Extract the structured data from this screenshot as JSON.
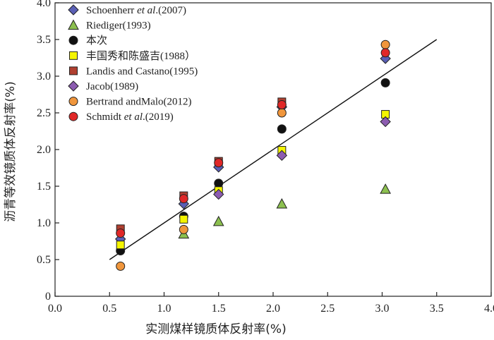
{
  "chart_data": {
    "type": "scatter",
    "xlabel": "实测煤样镜质体反射率(%)",
    "ylabel": "沥青等效镜质体反射率(%)",
    "xlim": [
      0.0,
      4.0
    ],
    "ylim": [
      0.0,
      4.0
    ],
    "xticks": [
      "0.0",
      "0.5",
      "1.0",
      "1.5",
      "2.0",
      "2.5",
      "3.0",
      "3.5",
      "4.0"
    ],
    "yticks": [
      "0",
      "0.5",
      "1.0",
      "1.5",
      "2.0",
      "2.5",
      "3.0",
      "3.5",
      "4.0"
    ],
    "grid": false,
    "legend_position": "top-left",
    "trendline": {
      "x": [
        0.5,
        3.5
      ],
      "y": [
        0.5,
        3.5
      ]
    },
    "series": [
      {
        "name_parts": [
          {
            "t": "Schoenherr ",
            "style": "normal"
          },
          {
            "t": "et al",
            "style": "italic"
          },
          {
            "t": ".(2007)",
            "style": "normal"
          }
        ],
        "marker": "diamond",
        "color": "#5a5fb5",
        "x": [
          0.6,
          1.18,
          1.5,
          2.08,
          3.03
        ],
        "y": [
          0.78,
          1.26,
          1.76,
          2.58,
          3.24
        ]
      },
      {
        "name_parts": [
          {
            "t": "Riediger(1993)",
            "style": "normal"
          }
        ],
        "marker": "triangle",
        "color": "#8cc04f",
        "x": [
          1.18,
          1.5,
          2.08,
          3.03
        ],
        "y": [
          0.85,
          1.02,
          1.26,
          1.46
        ]
      },
      {
        "name_parts": [
          {
            "t": "本次",
            "style": "normal"
          }
        ],
        "marker": "circle",
        "color": "#111111",
        "x": [
          0.6,
          1.18,
          1.5,
          2.08,
          3.03
        ],
        "y": [
          0.62,
          1.09,
          1.54,
          2.28,
          2.91
        ]
      },
      {
        "name_parts": [
          {
            "t": "丰国秀和陈盛吉(1988）",
            "style": "normal"
          }
        ],
        "marker": "square",
        "color": "#f5f500",
        "x": [
          0.6,
          1.18,
          1.5,
          2.08,
          3.03
        ],
        "y": [
          0.7,
          1.05,
          1.44,
          1.99,
          2.48
        ]
      },
      {
        "name_parts": [
          {
            "t": "Landis and Castano(1995)",
            "style": "normal"
          }
        ],
        "marker": "square",
        "color": "#b04030",
        "x": [
          0.6,
          1.18,
          1.5,
          2.08
        ],
        "y": [
          0.92,
          1.37,
          1.84,
          2.65
        ]
      },
      {
        "name_parts": [
          {
            "t": "Jacob(1989)",
            "style": "normal"
          }
        ],
        "marker": "diamond",
        "color": "#8c5cb0",
        "x": [
          1.5,
          2.08,
          3.03
        ],
        "y": [
          1.39,
          1.92,
          2.38
        ]
      },
      {
        "name_parts": [
          {
            "t": "Bertrand andMalo(2012)",
            "style": "normal"
          }
        ],
        "marker": "circle",
        "color": "#f0963c",
        "x": [
          0.6,
          1.18,
          2.08,
          3.03
        ],
        "y": [
          0.41,
          0.91,
          2.5,
          3.43
        ]
      },
      {
        "name_parts": [
          {
            "t": "Schmidt ",
            "style": "normal"
          },
          {
            "t": "et al",
            "style": "italic"
          },
          {
            "t": ".(2019)",
            "style": "normal"
          }
        ],
        "marker": "circle",
        "color": "#e02828",
        "x": [
          0.6,
          1.18,
          1.5,
          2.08,
          3.03
        ],
        "y": [
          0.86,
          1.33,
          1.82,
          2.61,
          3.32
        ]
      }
    ]
  }
}
